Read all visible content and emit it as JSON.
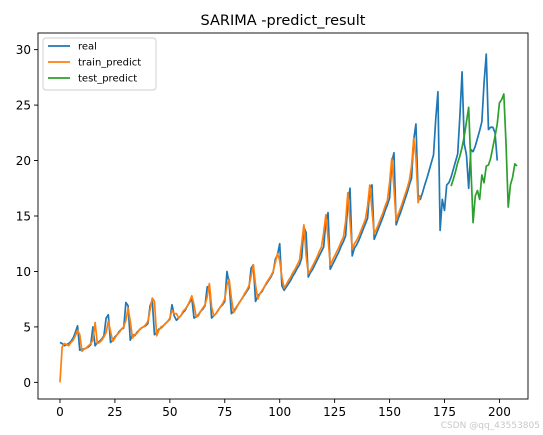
{
  "chart_data": {
    "type": "line",
    "title": "SARIMA -predict_result",
    "xlabel": "",
    "ylabel": "",
    "xlim": [
      -10,
      213
    ],
    "ylim": [
      -1.5,
      31.5
    ],
    "x_ticks": [
      0,
      25,
      50,
      75,
      100,
      125,
      150,
      175,
      200
    ],
    "y_ticks": [
      0,
      5,
      10,
      15,
      20,
      25,
      30
    ],
    "grid": false,
    "legend_position": "top-left",
    "series": [
      {
        "name": "real",
        "color": "#1f77b4",
        "x_start": 0,
        "values": [
          3.6,
          3.5,
          3.3,
          3.4,
          3.5,
          3.7,
          4.0,
          4.5,
          5.1,
          2.9,
          3.0,
          3.0,
          3.1,
          3.2,
          3.4,
          5.0,
          3.3,
          3.6,
          3.7,
          3.9,
          4.2,
          5.8,
          6.1,
          3.6,
          3.8,
          4.1,
          4.3,
          4.6,
          4.8,
          4.9,
          7.2,
          6.9,
          3.8,
          4.3,
          4.2,
          4.5,
          4.7,
          4.9,
          5.0,
          5.1,
          5.3,
          6.9,
          7.4,
          4.3,
          4.5,
          4.8,
          4.9,
          5.1,
          5.3,
          5.5,
          5.7,
          7.0,
          6.0,
          5.6,
          5.8,
          6.0,
          6.3,
          6.5,
          6.9,
          7.2,
          7.6,
          5.8,
          5.9,
          6.1,
          6.4,
          6.6,
          6.9,
          8.6,
          8.7,
          5.8,
          6.0,
          6.2,
          6.5,
          6.8,
          7.0,
          7.3,
          10.0,
          8.9,
          6.2,
          6.4,
          6.7,
          7.0,
          7.3,
          7.6,
          7.9,
          8.2,
          8.5,
          10.3,
          10.6,
          7.3,
          7.8,
          8.0,
          8.2,
          8.6,
          8.9,
          9.2,
          9.5,
          9.9,
          11.1,
          11.5,
          12.5,
          8.7,
          8.3,
          8.6,
          8.9,
          9.2,
          9.6,
          9.9,
          10.3,
          10.6,
          11.2,
          14.0,
          13.5,
          9.5,
          9.9,
          10.2,
          10.6,
          11.0,
          11.4,
          11.8,
          12.2,
          14.5,
          15.3,
          10.2,
          10.6,
          11.0,
          11.4,
          11.8,
          12.3,
          12.7,
          13.2,
          16.1,
          17.5,
          11.4,
          12.1,
          12.4,
          12.8,
          13.3,
          13.8,
          14.3,
          14.8,
          17.5,
          17.8,
          12.9,
          13.4,
          13.9,
          14.4,
          14.9,
          15.5,
          16.0,
          16.6,
          19.9,
          20.7,
          14.2,
          14.8,
          15.3,
          15.9,
          16.5,
          17.1,
          17.8,
          18.4,
          21.9,
          23.3,
          16.9,
          16.5,
          17.1,
          17.8,
          18.4,
          19.1,
          19.8,
          20.5,
          23.7,
          26.2,
          13.7,
          16.5,
          15.5,
          17.8,
          18.0,
          18.5,
          19.2,
          19.9,
          20.6,
          24.0,
          28.0,
          21.5,
          20.5,
          17.5,
          21.0,
          20.8,
          21.3,
          22.0,
          22.7,
          23.5,
          27.0,
          29.6,
          22.8,
          23.0,
          23.0,
          22.5,
          20.0
        ]
      },
      {
        "name": "train_predict",
        "color": "#ff7f0e",
        "x_start": 0,
        "values": [
          0.0,
          3.2,
          3.5,
          3.4,
          3.3,
          3.6,
          3.8,
          4.2,
          4.7,
          4.3,
          2.8,
          3.0,
          3.1,
          3.3,
          3.5,
          3.8,
          5.4,
          3.5,
          3.6,
          3.8,
          4.1,
          4.5,
          5.5,
          4.6,
          3.7,
          4.0,
          4.3,
          4.5,
          4.8,
          5.0,
          5.6,
          6.7,
          5.5,
          4.0,
          4.3,
          4.4,
          4.7,
          4.9,
          5.0,
          5.2,
          5.5,
          6.5,
          7.6,
          7.3,
          4.2,
          4.7,
          5.0,
          5.1,
          5.3,
          5.5,
          5.8,
          6.5,
          6.2,
          6.2,
          5.8,
          6.0,
          6.4,
          6.6,
          6.9,
          7.3,
          7.8,
          7.0,
          5.9,
          6.0,
          6.4,
          6.7,
          7.0,
          7.7,
          8.9,
          6.8,
          6.0,
          6.2,
          6.5,
          6.8,
          7.1,
          7.5,
          8.8,
          9.3,
          7.6,
          6.3,
          6.6,
          7.0,
          7.3,
          7.6,
          8.0,
          8.3,
          8.7,
          9.6,
          10.6,
          8.8,
          7.5,
          8.0,
          8.3,
          8.6,
          9.0,
          9.3,
          9.6,
          10.0,
          10.8,
          11.6,
          11.0,
          9.5,
          8.5,
          8.8,
          9.2,
          9.5,
          9.9,
          10.2,
          10.6,
          11.0,
          12.5,
          14.2,
          11.5,
          9.8,
          10.1,
          10.5,
          10.9,
          11.3,
          11.8,
          12.2,
          13.5,
          15.1,
          13.0,
          10.6,
          11.0,
          11.4,
          11.8,
          12.2,
          12.7,
          13.1,
          14.5,
          17.1,
          14.5,
          12.0,
          12.5,
          12.8,
          13.2,
          13.7,
          14.2,
          14.7,
          15.9,
          17.8,
          15.5,
          13.4,
          13.8,
          14.3,
          14.8,
          15.3,
          15.9,
          16.4,
          18.0,
          20.2,
          17.5,
          14.6,
          15.2,
          15.7,
          16.3,
          16.9,
          17.5,
          18.2,
          19.5,
          22.0,
          20.3,
          16.2,
          16.9
        ]
      },
      {
        "name": "test_predict",
        "color": "#2ca02c",
        "x_start": 178,
        "values": [
          17.7,
          18.3,
          19.0,
          19.8,
          20.4,
          21.2,
          22.2,
          23.5,
          24.8,
          19.5,
          14.4,
          16.8,
          17.3,
          16.5,
          18.7,
          18.0,
          19.5,
          19.6,
          20.2,
          21.2,
          22.2,
          23.3,
          25.2,
          25.5,
          26.0,
          21.5,
          15.8,
          17.8,
          18.5,
          19.7,
          19.5
        ]
      }
    ],
    "watermark": "CSDN @qq_43553805"
  }
}
